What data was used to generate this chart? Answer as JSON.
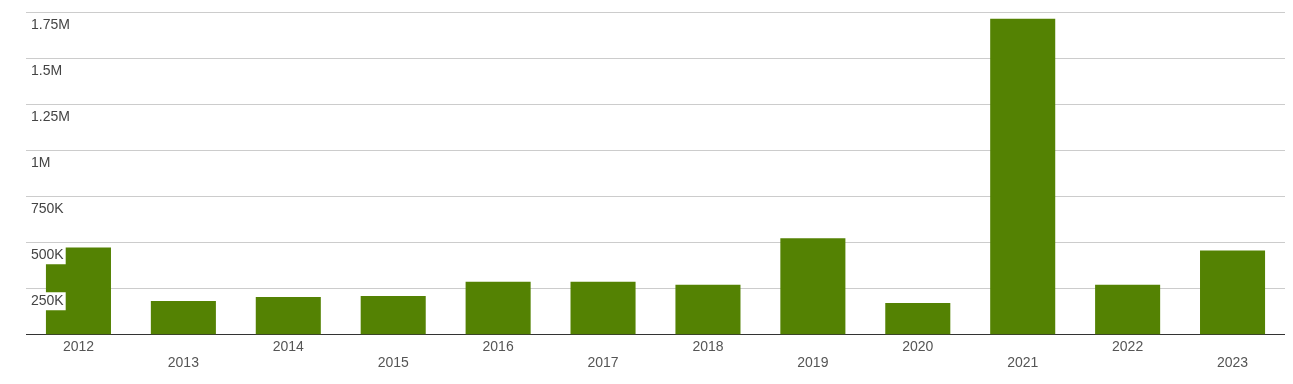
{
  "chart_data": {
    "type": "bar",
    "categories": [
      "2012",
      "2013",
      "2014",
      "2015",
      "2016",
      "2017",
      "2018",
      "2019",
      "2020",
      "2021",
      "2022",
      "2023"
    ],
    "values": [
      472000,
      181000,
      203000,
      209000,
      286000,
      286000,
      269000,
      522000,
      170000,
      1714000,
      269000,
      456000
    ],
    "color": "#548203",
    "ylim": [
      0,
      1750000
    ],
    "yticks": [
      {
        "value": 250000,
        "label": "250K"
      },
      {
        "value": 500000,
        "label": "500K"
      },
      {
        "value": 750000,
        "label": "750K"
      },
      {
        "value": 1000000,
        "label": "1M"
      },
      {
        "value": 1250000,
        "label": "1.25M"
      },
      {
        "value": 1500000,
        "label": "1.5M"
      },
      {
        "value": 1750000,
        "label": "1.75M"
      }
    ],
    "grid": "y"
  }
}
